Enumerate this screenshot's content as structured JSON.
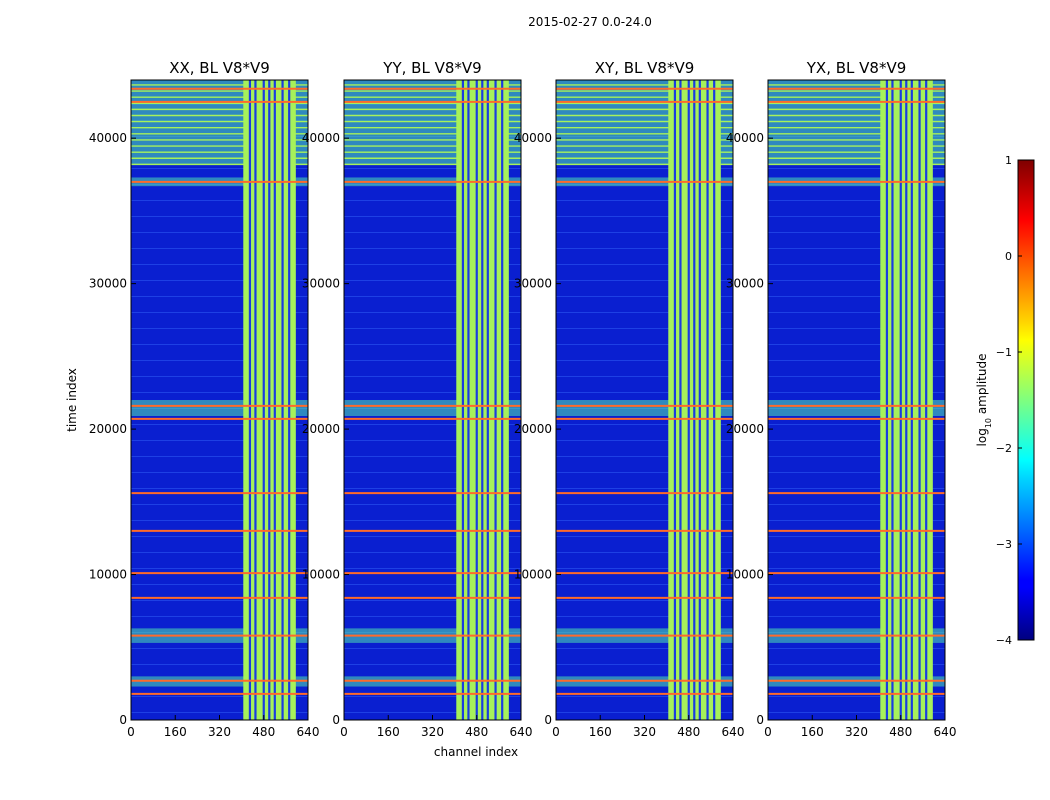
{
  "chart_data": {
    "type": "heatmap",
    "suptitle": "2015-02-27 0.0-24.0",
    "xlabel": "channel index",
    "ylabel": "time index",
    "xlim": [
      0,
      640
    ],
    "ylim": [
      0,
      44000
    ],
    "xticks": [
      "0",
      "160",
      "320",
      "480",
      "640"
    ],
    "yticks": [
      "0",
      "10000",
      "20000",
      "30000",
      "40000"
    ],
    "panels": [
      {
        "title": "XX, BL V8*V9"
      },
      {
        "title": "YY, BL V8*V9"
      },
      {
        "title": "XY, BL V8*V9"
      },
      {
        "title": "YX, BL V8*V9"
      }
    ],
    "colorbar": {
      "label": "log10 amplitude",
      "label_base": "log",
      "label_sub": "10",
      "label_rest": " amplitude",
      "range": [
        -4,
        1
      ],
      "ticks": [
        "1",
        "0",
        "−1",
        "−2",
        "−3",
        "−4"
      ],
      "colormap": "jet"
    },
    "rfi_band_channels": [
      406,
      596
    ],
    "bright_rows_time_index": [
      1800,
      2700,
      5800,
      8400,
      10100,
      13000,
      15600,
      20700,
      21600,
      37000,
      42500,
      43400
    ],
    "colors": {
      "background": "#0a1fd0",
      "band": "#a6f15a",
      "row": "#ff6a2a",
      "stripe": "#4fe0b0"
    }
  }
}
